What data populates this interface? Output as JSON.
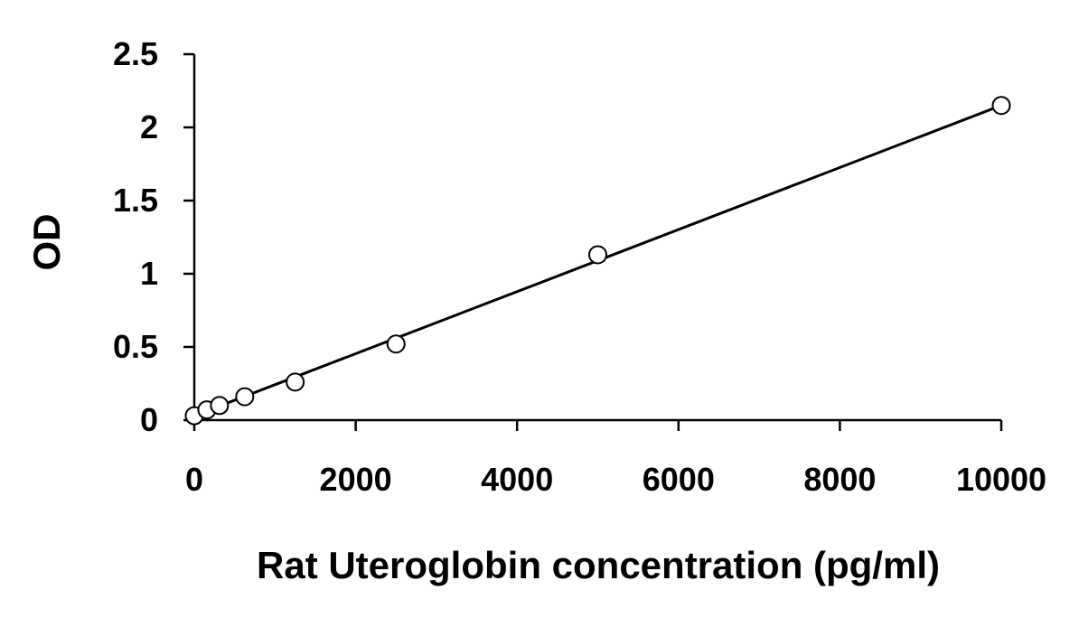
{
  "chart_data": {
    "type": "scatter",
    "title": "",
    "xlabel": "Rat Uteroglobin concentration (pg/ml)",
    "ylabel": "OD",
    "xlim": [
      0,
      10000
    ],
    "ylim": [
      0,
      2.5
    ],
    "x_ticks": [
      0,
      2000,
      4000,
      6000,
      8000,
      10000
    ],
    "y_ticks": [
      0,
      0.5,
      1,
      1.5,
      2,
      2.5
    ],
    "x_tick_labels": [
      "0",
      "2000",
      "4000",
      "6000",
      "8000",
      "10000"
    ],
    "y_tick_labels": [
      "0",
      "0.5",
      "1",
      "1.5",
      "2",
      "2.5"
    ],
    "grid": false,
    "legend": false,
    "series": [
      {
        "marker": "open-circle",
        "x": [
          0,
          156,
          312,
          625,
          1250,
          2500,
          5000,
          10000
        ],
        "y": [
          0.03,
          0.07,
          0.1,
          0.16,
          0.26,
          0.52,
          1.13,
          2.15
        ]
      }
    ],
    "trendline": {
      "type": "linear",
      "x": [
        0,
        10000
      ],
      "y": [
        0.03,
        2.15
      ]
    }
  }
}
